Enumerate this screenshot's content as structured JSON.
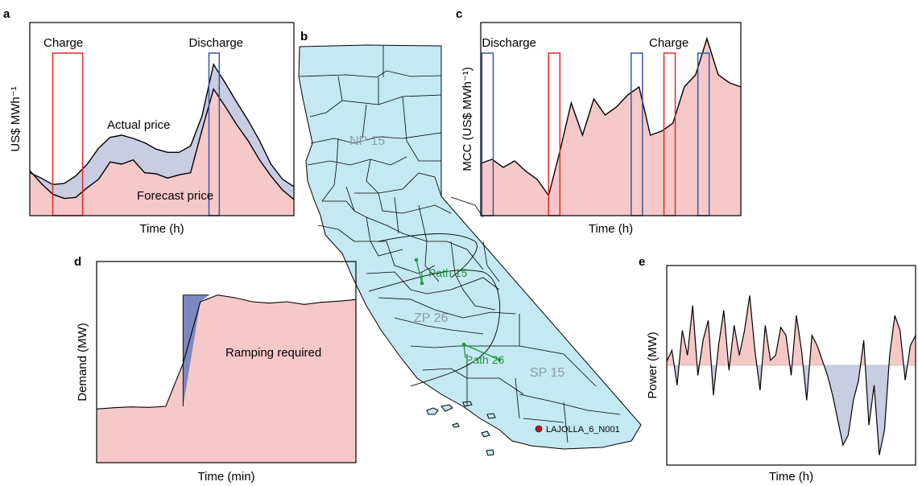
{
  "colors": {
    "red": "#e8262b",
    "blue": "#3a55a8",
    "forecast_fill": "#f6c9c8",
    "actual_fill": "#c9cde2",
    "ramp_fill": "#7c88c2",
    "map_fill": "#c5e9f3",
    "path_green": "#1f9a3a",
    "node_red": "#c21818"
  },
  "map": {
    "letter": "b",
    "regions": [
      "NP 15",
      "ZP 26",
      "SP 15"
    ],
    "paths": [
      "Path 15",
      "Path 26"
    ],
    "node": "LAJOLLA_6_N001"
  },
  "chart_data": [
    {
      "panel": "a",
      "type": "area",
      "xlabel": "Time (h)",
      "ylabel": "US$ MWh⁻¹",
      "x": [
        0,
        1,
        2,
        3,
        4,
        5,
        6,
        7,
        8,
        9,
        10,
        11,
        12,
        13,
        14,
        15,
        16,
        17,
        18,
        19,
        20,
        21,
        22,
        23
      ],
      "series": [
        {
          "name": "Actual price",
          "values": [
            40,
            35,
            29,
            30,
            37,
            48,
            63,
            73,
            75,
            72,
            68,
            62,
            59,
            59,
            65,
            93,
            141,
            124,
            106,
            89,
            70,
            48,
            34,
            27
          ]
        },
        {
          "name": "Forecast price",
          "values": [
            42,
            30,
            20,
            16,
            17,
            26,
            34,
            50,
            48,
            52,
            40,
            39,
            35,
            38,
            40,
            80,
            118,
            102,
            85,
            70,
            52,
            37,
            24,
            15
          ]
        }
      ],
      "ylim": [
        0,
        180
      ],
      "annotations": [
        {
          "label": "Charge",
          "x": [
            2,
            4.6
          ]
        },
        {
          "label": "Discharge",
          "x": [
            15.6,
            16.5
          ]
        }
      ]
    },
    {
      "panel": "c",
      "type": "area",
      "xlabel": "Time (h)",
      "ylabel": "MCC (US$ MWh⁻¹)",
      "x": [
        0,
        1,
        2,
        3,
        4,
        5,
        6,
        7,
        8,
        9,
        10,
        11,
        12,
        13,
        14,
        15,
        16,
        17,
        18,
        19,
        20,
        21,
        22,
        23
      ],
      "series": [
        {
          "name": "MCC",
          "values": [
            -15,
            -10,
            -20,
            -12,
            -25,
            -35,
            -55,
            0,
            60,
            20,
            65,
            45,
            55,
            70,
            80,
            20,
            25,
            35,
            80,
            95,
            140,
            95,
            85,
            80
          ]
        }
      ],
      "ylim": [
        -80,
        160
      ],
      "annotations": [
        {
          "label": "Discharge",
          "x": [
            0.1,
            1.1
          ]
        },
        {
          "label": "Charge",
          "x": [
            6,
            7
          ]
        },
        {
          "label": "",
          "x": [
            13.3,
            14.3
          ]
        },
        {
          "label": "",
          "x": [
            16.2,
            17.2
          ]
        },
        {
          "label": "",
          "x": [
            19.2,
            20.2
          ]
        }
      ]
    },
    {
      "panel": "d",
      "type": "area",
      "xlabel": "Time (min)",
      "ylabel": "Demand (MW)",
      "x": [
        0,
        4,
        8,
        12,
        16,
        20,
        24,
        28,
        32,
        36,
        40,
        44,
        48,
        52,
        56,
        60
      ],
      "series": [
        {
          "name": "Demand",
          "values": [
            200,
            205,
            208,
            206,
            210,
            370,
            600,
            625,
            615,
            600,
            595,
            600,
            590,
            598,
            602,
            608
          ]
        }
      ],
      "ylim": [
        0,
        750
      ],
      "annotations": [
        {
          "label": "Ramping required",
          "x": [
            18,
            26
          ]
        }
      ]
    },
    {
      "panel": "e",
      "type": "line",
      "xlabel": "Time (h)",
      "ylabel": "Power (MW)",
      "baseline": 0,
      "x": [
        0,
        0.5,
        1,
        1.5,
        2,
        2.5,
        3,
        3.5,
        4,
        4.5,
        5,
        5.5,
        6,
        6.5,
        7,
        7.5,
        8,
        8.5,
        9,
        9.5,
        10,
        10.5,
        11,
        11.5,
        12,
        12.5,
        13,
        13.5,
        14,
        14.5,
        15,
        15.5,
        16,
        16.5,
        17,
        17.5,
        18,
        18.5,
        19,
        19.5,
        20,
        20.5,
        21,
        21.5,
        22,
        22.5,
        23,
        23.5,
        24
      ],
      "series": [
        {
          "name": "Power",
          "values": [
            4,
            15,
            -20,
            35,
            10,
            60,
            -10,
            25,
            45,
            -30,
            20,
            55,
            -5,
            40,
            10,
            35,
            70,
            15,
            -25,
            40,
            5,
            10,
            38,
            30,
            -10,
            50,
            15,
            -35,
            30,
            20,
            5,
            -10,
            -30,
            -55,
            -80,
            -70,
            -35,
            -15,
            25,
            -60,
            -20,
            -90,
            -65,
            10,
            50,
            35,
            -15,
            20,
            30
          ]
        }
      ],
      "ylim": [
        -100,
        100
      ]
    }
  ]
}
